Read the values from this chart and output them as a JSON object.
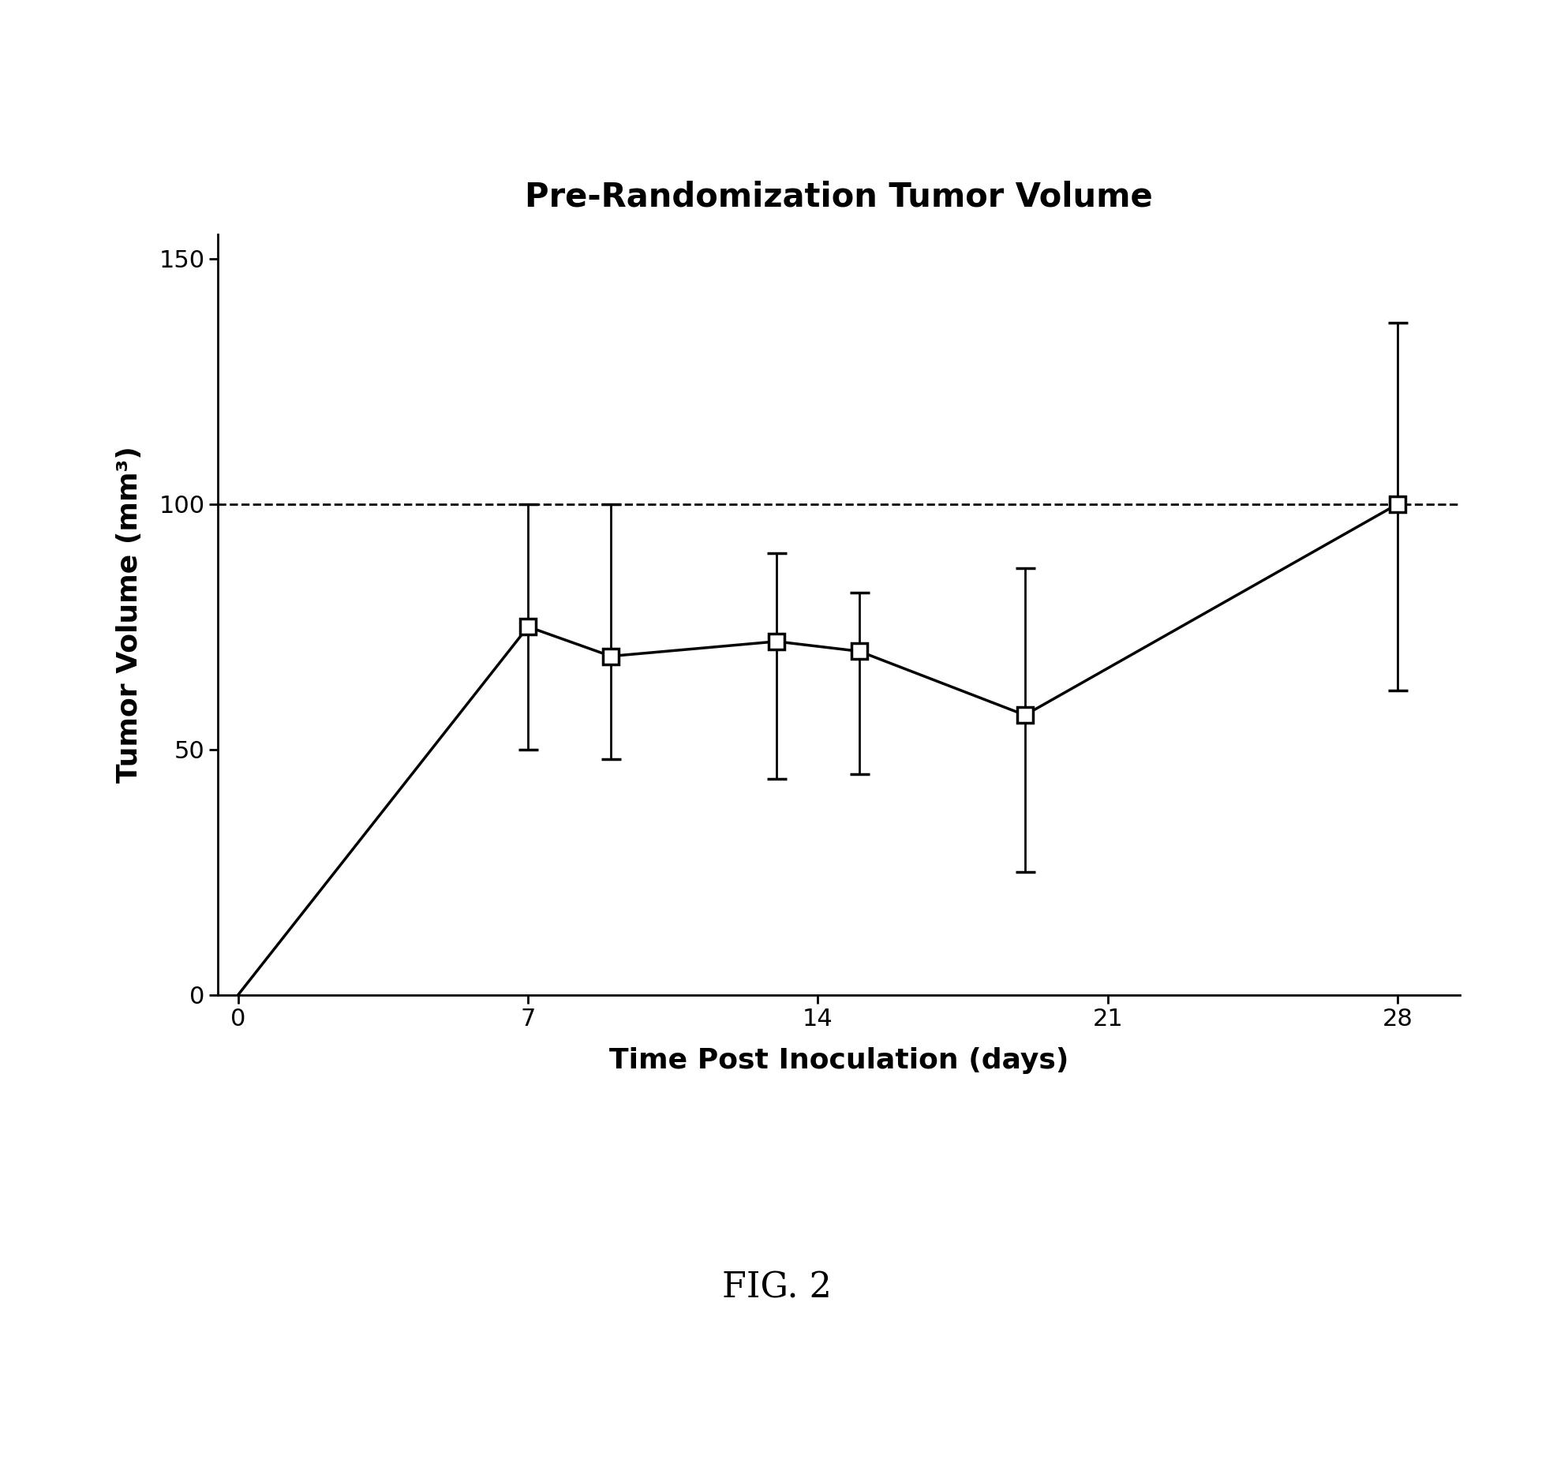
{
  "title": "Pre-Randomization Tumor Volume",
  "xlabel": "Time Post Inoculation (days)",
  "ylabel": "Tumor Volume (mm³)",
  "fig_caption": "FIG. 2",
  "x": [
    0,
    7,
    9,
    13,
    15,
    19,
    28
  ],
  "y": [
    0,
    75,
    69,
    72,
    70,
    57,
    100
  ],
  "y_upper": [
    0,
    100,
    100,
    90,
    82,
    87,
    137
  ],
  "y_lower": [
    0,
    50,
    48,
    44,
    45,
    25,
    62
  ],
  "dashed_line_y": 100,
  "xlim": [
    -0.5,
    29.5
  ],
  "ylim": [
    0,
    155
  ],
  "xticks": [
    0,
    7,
    14,
    21,
    28
  ],
  "yticks": [
    0,
    50,
    100,
    150
  ],
  "background_color": "#ffffff",
  "line_color": "#000000",
  "marker_color": "#ffffff",
  "marker_edge_color": "#000000",
  "dashed_color": "#000000",
  "title_fontsize": 30,
  "label_fontsize": 26,
  "tick_fontsize": 22,
  "caption_fontsize": 32
}
